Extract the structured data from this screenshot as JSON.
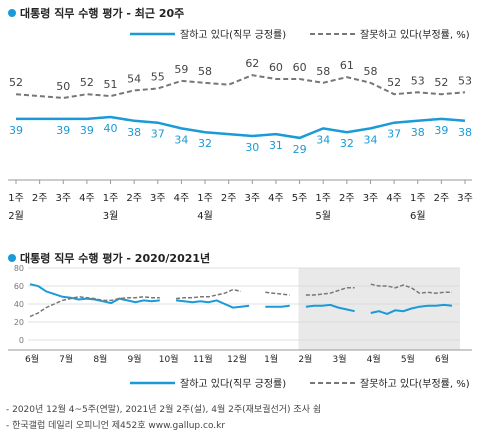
{
  "colors": {
    "approve": "#1a9ad6",
    "disapprove": "#777777",
    "shade": "#e9e9e9",
    "accent_dot": "#1a9ad6"
  },
  "chart_data": [
    {
      "type": "line",
      "title": "대통령 직무 수행 평가 - 최근 20주",
      "x": [
        "1주",
        "2주",
        "3주",
        "4주",
        "1주",
        "2주",
        "3주",
        "4주",
        "1주",
        "2주",
        "3주",
        "4주",
        "5주",
        "1주",
        "2주",
        "3주",
        "4주",
        "1주",
        "2주",
        "3주"
      ],
      "month_labels": [
        {
          "index": 0,
          "label": "2월"
        },
        {
          "index": 4,
          "label": "3월"
        },
        {
          "index": 8,
          "label": "4월"
        },
        {
          "index": 13,
          "label": "5월"
        },
        {
          "index": 17,
          "label": "6월"
        }
      ],
      "series": [
        {
          "name": "잘하고 있다(직무 긍정률)",
          "color": "#1a9ad6",
          "values": [
            39,
            39,
            39,
            39,
            40,
            38,
            37,
            34,
            32,
            31,
            30,
            31,
            29,
            34,
            32,
            34,
            37,
            38,
            39,
            38
          ]
        },
        {
          "name": "잘못하고 있다(부정률, %)",
          "color": "#777777",
          "dashed": true,
          "values": [
            52,
            51,
            50,
            52,
            51,
            54,
            55,
            59,
            58,
            57,
            62,
            60,
            60,
            58,
            61,
            58,
            52,
            53,
            52,
            53
          ]
        }
      ],
      "data_labels_approve": [
        "39",
        "",
        "39",
        "39",
        "40",
        "38",
        "37",
        "34",
        "32",
        "",
        "30",
        "31",
        "29",
        "34",
        "32",
        "34",
        "37",
        "38",
        "39",
        "38"
      ],
      "data_labels_disapprove": [
        "52",
        "",
        "50",
        "52",
        "51",
        "54",
        "55",
        "59",
        "58",
        "",
        "62",
        "60",
        "60",
        "58",
        "61",
        "58",
        "52",
        "53",
        "52",
        "53"
      ],
      "ylim": [
        20,
        70
      ],
      "legend_position": "top-right"
    },
    {
      "type": "line",
      "title": "대통령 직무 수행 평가 - 2020/2021년",
      "yticks": [
        0,
        20,
        40,
        60,
        80
      ],
      "ylim": [
        0,
        80
      ],
      "month_labels": [
        "6월",
        "7월",
        "8월",
        "9월",
        "10월",
        "11월",
        "12월",
        "1월",
        "2월",
        "3월",
        "4월",
        "5월",
        "6월"
      ],
      "shaded_from_month_index": 7.8,
      "series": [
        {
          "name": "잘하고 있다(직무 긍정률)",
          "color": "#1a9ad6",
          "values": [
            62,
            60,
            54,
            51,
            48,
            47,
            45,
            46,
            45,
            43,
            41,
            46,
            44,
            42,
            44,
            43,
            44,
            null,
            44,
            43,
            42,
            43,
            42,
            44,
            40,
            36,
            37,
            38,
            null,
            37,
            37,
            37,
            38,
            null,
            37,
            38,
            38,
            39,
            36,
            34,
            32,
            null,
            30,
            32,
            29,
            33,
            32,
            35,
            37,
            38,
            38,
            39,
            38
          ]
        },
        {
          "name": "잘못하고 있다(부정률, %)",
          "color": "#777777",
          "dashed": true,
          "values": [
            26,
            30,
            36,
            40,
            44,
            46,
            48,
            47,
            46,
            44,
            44,
            46,
            47,
            47,
            48,
            47,
            47,
            null,
            46,
            47,
            47,
            48,
            48,
            50,
            52,
            56,
            54,
            null,
            null,
            53,
            52,
            51,
            50,
            null,
            50,
            50,
            51,
            52,
            55,
            58,
            58,
            null,
            62,
            60,
            60,
            58,
            61,
            58,
            52,
            53,
            52,
            53,
            53
          ]
        }
      ],
      "legend_position": "bottom"
    }
  ],
  "legend": {
    "approve_label": "잘하고 있다(직무 긍정률)",
    "disapprove_label": "잘못하고 있다(부정률, %)"
  },
  "footnotes": {
    "line1": "- 2020년 12월 4~5주(연말), 2021년 2월 2주(설), 4월 2주(재보궐선거) 조사 쉼",
    "line2": "- 한국갤럽 데일리 오피니언 제452호 www.gallup.co.kr"
  }
}
